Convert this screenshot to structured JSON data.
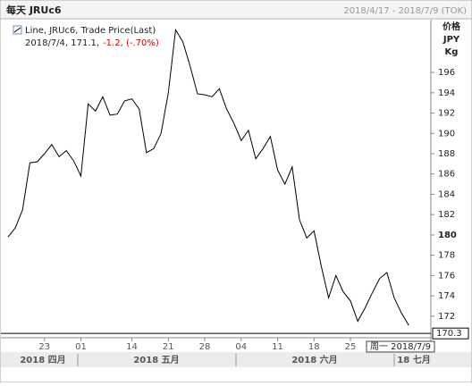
{
  "chart_data": {
    "type": "line",
    "title": "每天 JRUc6",
    "date_range": "2018/4/17 - 2018/7/9 (TOK)",
    "legend_label": "Line, JRUc6, Trade Price(Last)",
    "legend_detail": "2018/7/4, 171.1,",
    "legend_change": "-1.2, (-.70%)",
    "y_axis_labels": [
      "价格",
      "JPY",
      "Kg"
    ],
    "color": "#000000",
    "categories": [
      null,
      null,
      null,
      null,
      null,
      "23",
      null,
      null,
      null,
      null,
      "01",
      null,
      null,
      null,
      null,
      null,
      null,
      "14",
      null,
      null,
      null,
      null,
      "21",
      null,
      null,
      null,
      null,
      "28",
      null,
      null,
      null,
      null,
      "04",
      null,
      null,
      null,
      null,
      "11",
      null,
      null,
      null,
      null,
      "18",
      null,
      null,
      null,
      null,
      "25",
      null,
      null,
      null,
      null,
      null,
      null,
      null,
      null
    ],
    "values": [
      179.8,
      180.7,
      182.5,
      187.1,
      187.2,
      188.0,
      188.9,
      187.7,
      188.3,
      187.3,
      185.8,
      192.9,
      192.2,
      193.6,
      191.8,
      191.9,
      193.2,
      193.4,
      192.4,
      188.1,
      188.5,
      190.0,
      194.0,
      200.2,
      199.0,
      196.6,
      193.9,
      193.8,
      193.6,
      194.4,
      192.4,
      191.0,
      189.3,
      190.3,
      187.5,
      188.5,
      189.7,
      186.4,
      185.0,
      186.7,
      181.5,
      179.7,
      180.4,
      176.9,
      173.8,
      176.0,
      174.4,
      173.5,
      171.5,
      172.8,
      174.3,
      175.7,
      176.3,
      173.8,
      172.3,
      171.1
    ],
    "months": [
      "2018 四月",
      "2018 五月",
      "2018 六月",
      "18 七月"
    ],
    "cursor_label": "周一 2018/7/9",
    "last_price": 170.3,
    "ylim": [
      170.05,
      201.2
    ],
    "yticks": [
      172,
      174,
      176,
      178,
      180,
      182,
      184,
      186,
      188,
      190,
      192,
      194,
      196
    ],
    "highlight_ytick": 180,
    "grid": false
  }
}
